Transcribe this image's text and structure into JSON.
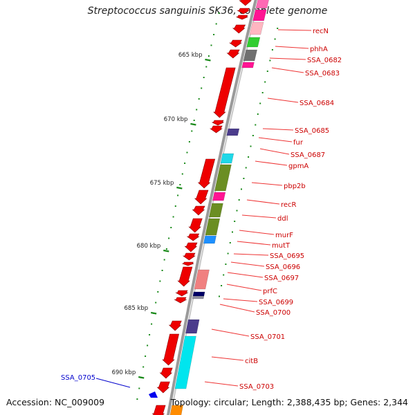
{
  "title": "Streptococcus sanguinis SK36, complete genome",
  "footer": {
    "accession": "Accession: NC_009009",
    "topology": "Topology: circular; Length: 2,388,435 bp; Genes: 2,344"
  },
  "ruler": [
    "665 kbp",
    "670 kbp",
    "675 kbp",
    "680 kbp",
    "685 kbp",
    "690 kbp"
  ],
  "gene_labels": [
    "recN",
    "phhA",
    "SSA_0682",
    "SSA_0683",
    "SSA_0684",
    "SSA_0685",
    "fur",
    "SSA_0687",
    "gpmA",
    "pbp2b",
    "recR",
    "ddl",
    "murF",
    "mutT",
    "SSA_0695",
    "SSA_0696",
    "SSA_0697",
    "prfC",
    "SSA_0699",
    "SSA_0700",
    "SSA_0701",
    "citB",
    "SSA_0703"
  ],
  "highlight_label": "SSA_0705",
  "colors": {
    "gene_arrow": "#ee0000",
    "label_text": "#cc0000",
    "label_line": "#ee3333",
    "highlight": "#0000cc",
    "ruler_tick": "#1a8a1a",
    "backbone": "#9a9a9a"
  }
}
